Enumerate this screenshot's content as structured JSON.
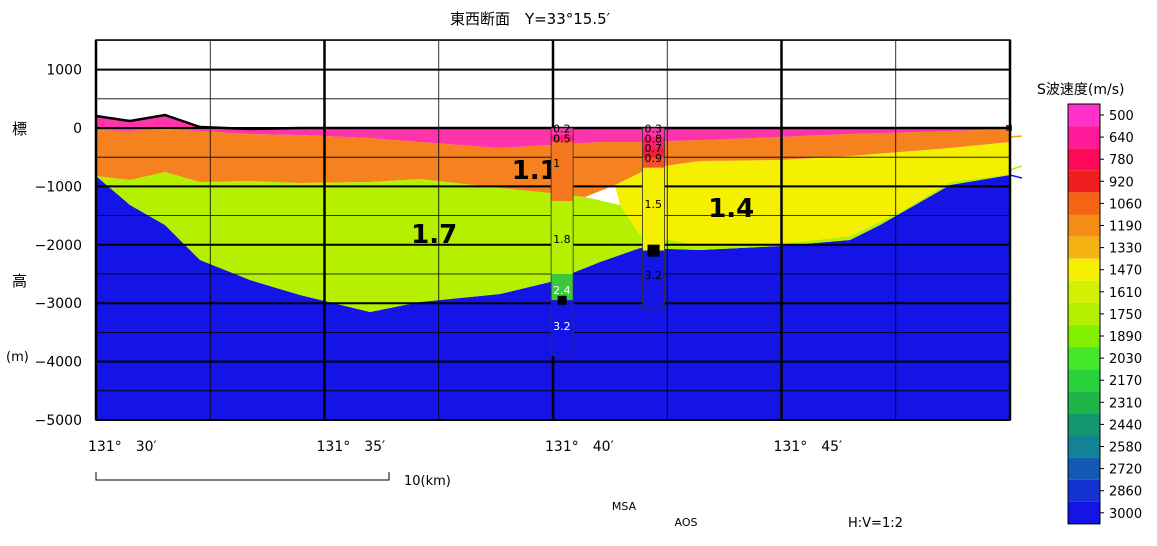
{
  "title": "東西断面　Y=33°15.5′",
  "y_axis": {
    "label_chars": [
      "標",
      "高",
      "(m)"
    ],
    "ticks": [
      {
        "value": 1000,
        "label": "1000"
      },
      {
        "value": 0,
        "label": "0"
      },
      {
        "value": -1000,
        "label": "−1000"
      },
      {
        "value": -2000,
        "label": "−2000"
      },
      {
        "value": -3000,
        "label": "−3000"
      },
      {
        "value": -4000,
        "label": "−4000"
      },
      {
        "value": -5000,
        "label": "−5000"
      }
    ]
  },
  "x_axis": {
    "ticks": [
      {
        "value": 30,
        "label": "131°　30′"
      },
      {
        "value": 35,
        "label": "131°　35′"
      },
      {
        "value": 40,
        "label": "131°　40′"
      },
      {
        "value": 45,
        "label": "131°　45′"
      }
    ]
  },
  "scale_bar": {
    "label": "10(km)",
    "km": 10
  },
  "ratio_label": "H:V=1:2",
  "layer_labels": [
    {
      "text": "1.1",
      "x": 39.6,
      "y": -700
    },
    {
      "text": "1.7",
      "x": 37.4,
      "y": -1800
    },
    {
      "text": "1.4",
      "x": 43.9,
      "y": -1350
    }
  ],
  "boreholes": [
    {
      "name": "MSA",
      "x": 40.2,
      "top": 0,
      "bottom": -3900,
      "segments": [
        {
          "top": 0,
          "bottom": -120,
          "color": "#ff33aa"
        },
        {
          "top": -120,
          "bottom": -230,
          "color": "#ff1c6e"
        },
        {
          "top": -230,
          "bottom": -1250,
          "color": "#f5781e"
        },
        {
          "top": -1250,
          "bottom": -2500,
          "color": "#b4f000"
        },
        {
          "top": -2500,
          "bottom": -2950,
          "color": "#3cc83c"
        },
        {
          "top": -2950,
          "bottom": -3900,
          "color": "#1414e6"
        }
      ],
      "labels": [
        {
          "text": "0.2",
          "y": -10
        },
        {
          "text": "0.5",
          "y": -180
        },
        {
          "text": "1",
          "y": -600
        },
        {
          "text": "1.8",
          "y": -1900
        },
        {
          "text": "2.4",
          "y": -2770
        },
        {
          "text": "3.2",
          "y": -3390
        }
      ],
      "marker_y": -2950
    },
    {
      "name": "AOS",
      "x": 42.2,
      "top": 0,
      "bottom": -3100,
      "segments": [
        {
          "top": 0,
          "bottom": -150,
          "color": "#ff33aa"
        },
        {
          "top": -150,
          "bottom": -350,
          "color": "#ff1c6e"
        },
        {
          "top": -350,
          "bottom": -500,
          "color": "#f01e3c"
        },
        {
          "top": -500,
          "bottom": -680,
          "color": "#f5502d"
        },
        {
          "top": -680,
          "bottom": -2100,
          "color": "#f5f000"
        },
        {
          "top": -2100,
          "bottom": -3100,
          "color": "#1414e6"
        }
      ],
      "labels": [
        {
          "text": "0.3",
          "y": -10
        },
        {
          "text": "0.8",
          "y": -180
        },
        {
          "text": "0.7",
          "y": -340
        },
        {
          "text": "0.9",
          "y": -510
        },
        {
          "text": "1.5",
          "y": -1300
        },
        {
          "text": "3.2",
          "y": -2520
        }
      ],
      "marker_y": -2100
    }
  ],
  "legend": {
    "title": "S波速度(m/s)",
    "items": [
      {
        "label": "500",
        "color": "#ff33cc"
      },
      {
        "label": "640",
        "color": "#ff1a99"
      },
      {
        "label": "780",
        "color": "#ff0a5a"
      },
      {
        "label": "920",
        "color": "#f01e1e"
      },
      {
        "label": "1060",
        "color": "#f56414"
      },
      {
        "label": "1190",
        "color": "#f58c14"
      },
      {
        "label": "1330",
        "color": "#f5b414"
      },
      {
        "label": "1470",
        "color": "#f5f000"
      },
      {
        "label": "1610",
        "color": "#d2f000"
      },
      {
        "label": "1750",
        "color": "#b4f000"
      },
      {
        "label": "1890",
        "color": "#82f000"
      },
      {
        "label": "2030",
        "color": "#46e628"
      },
      {
        "label": "2170",
        "color": "#28d23c"
      },
      {
        "label": "2310",
        "color": "#1eb446"
      },
      {
        "label": "2440",
        "color": "#14966e"
      },
      {
        "label": "2580",
        "color": "#148296"
      },
      {
        "label": "2720",
        "color": "#145ab4"
      },
      {
        "label": "2860",
        "color": "#1432d2"
      },
      {
        "label": "3000",
        "color": "#1414e6"
      }
    ]
  }
}
